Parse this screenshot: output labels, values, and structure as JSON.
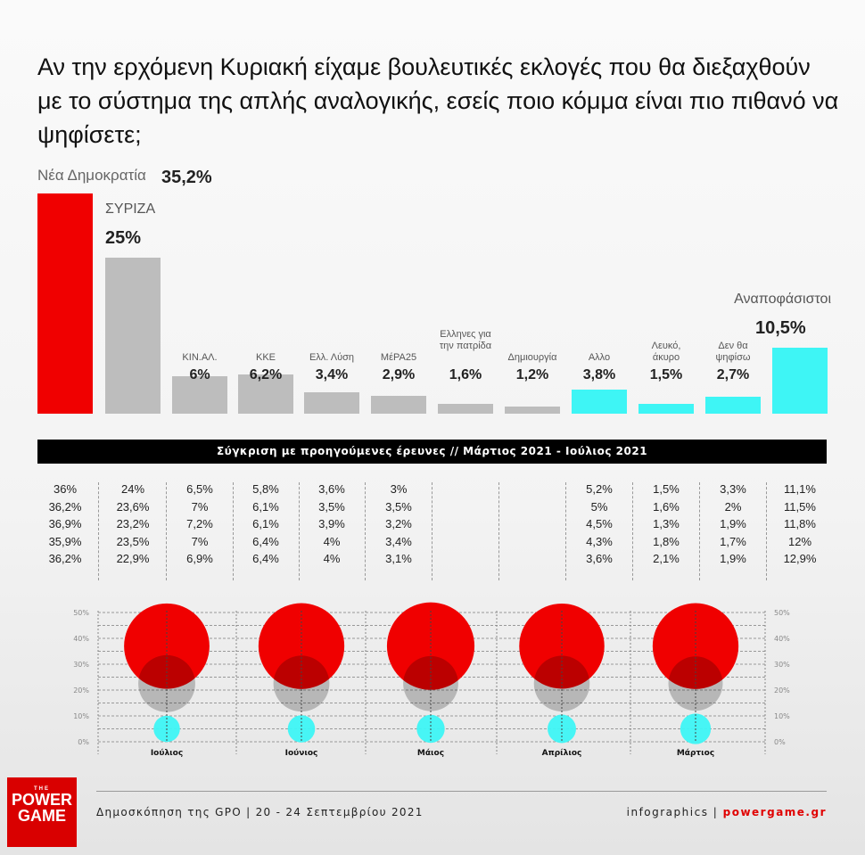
{
  "title": "Αν την ερχόμενη Κυριακή είχαμε βουλευτικές εκλογές που θα διεξαχθούν με το σύστημα της απλής αναλογικής, εσείς ποιο κόμμα είναι πιο πιθανό να ψηφίσετε;",
  "colors": {
    "red": "#f00000",
    "gray": "#bdbdbd",
    "cyan": "#3ef5f5"
  },
  "chart_data": [
    {
      "type": "bar",
      "ylim": [
        0,
        35.2
      ],
      "categories": [
        "Νέα Δημοκρατία",
        "ΣΥΡΙΖΑ",
        "ΚΙΝ.ΑΛ.",
        "ΚΚΕ",
        "Ελλ. Λύση",
        "ΜέΡΑ25",
        "Ελληνες για την πατρίδα",
        "Δημιουργία",
        "Αλλο",
        "Λευκό, άκυρο",
        "Δεν θα ψηφίσω",
        "Αναποφάσιστοι"
      ],
      "labels": [
        "35,2%",
        "25%",
        "6%",
        "6,2%",
        "3,4%",
        "2,9%",
        "1,6%",
        "1,2%",
        "3,8%",
        "1,5%",
        "2,7%",
        "10,5%"
      ],
      "values": [
        35.2,
        25,
        6,
        6.2,
        3.4,
        2.9,
        1.6,
        1.2,
        3.8,
        1.5,
        2.7,
        10.5
      ],
      "bar_colors": [
        "red",
        "gray",
        "gray",
        "gray",
        "gray",
        "gray",
        "gray",
        "gray",
        "cyan",
        "cyan",
        "cyan",
        "cyan"
      ]
    },
    {
      "type": "table",
      "title": "Σύγκριση με προηγούμενες έρευνες // Μάρτιος 2021 - Ιούλιος 2021",
      "rows": [
        [
          "36%",
          "24%",
          "6,5%",
          "5,8%",
          "3,6%",
          "3%",
          "",
          "",
          "5,2%",
          "1,5%",
          "3,3%",
          "11,1%"
        ],
        [
          "36,2%",
          "23,6%",
          "7%",
          "6,1%",
          "3,5%",
          "3,5%",
          "",
          "",
          "5%",
          "1,6%",
          "2%",
          "11,5%"
        ],
        [
          "36,9%",
          "23,2%",
          "7,2%",
          "6,1%",
          "3,9%",
          "3,2%",
          "",
          "",
          "4,5%",
          "1,3%",
          "1,9%",
          "11,8%"
        ],
        [
          "35,9%",
          "23,5%",
          "7%",
          "6,4%",
          "4%",
          "3,4%",
          "",
          "",
          "4,3%",
          "1,8%",
          "1,7%",
          "12%"
        ],
        [
          "36,2%",
          "22,9%",
          "6,9%",
          "6,4%",
          "4%",
          "3,1%",
          "",
          "",
          "3,6%",
          "2,1%",
          "1,9%",
          "12,9%"
        ]
      ]
    },
    {
      "type": "scatter",
      "ylim": [
        0,
        50
      ],
      "yticks": [
        "0%",
        "10%",
        "20%",
        "30%",
        "40%",
        "50%"
      ],
      "categories": [
        "Ιούλιος",
        "Ιούνιος",
        "Μάιος",
        "Απρίλιος",
        "Μάρτιος"
      ],
      "series": [
        {
          "color": "red",
          "values": [
            36,
            36.2,
            36.9,
            35.9,
            36.2
          ]
        },
        {
          "color": "gray",
          "values": [
            24,
            23.6,
            23.2,
            23.5,
            22.9
          ]
        },
        {
          "color": "cyan",
          "values": [
            11.1,
            11.5,
            11.8,
            12,
            12.9
          ]
        }
      ]
    }
  ],
  "footer": {
    "source": "Δημοσκόπηση της GPO | 20 - 24 Σεπτεμβρίου 2021",
    "credit_a": "infographics | ",
    "credit_b": "powergame.gr",
    "logo": [
      "THE",
      "POWER",
      "GAME"
    ]
  }
}
